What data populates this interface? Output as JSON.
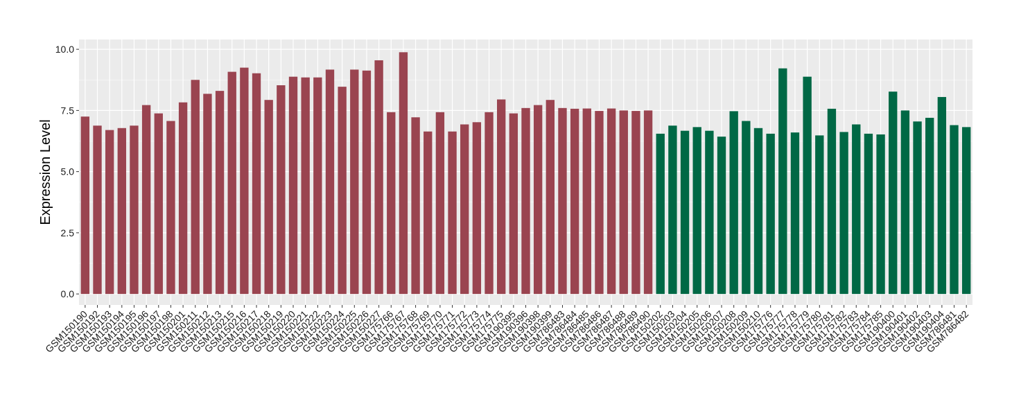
{
  "chart_data": {
    "type": "bar",
    "title": "",
    "xlabel": "",
    "ylabel": "Expression Level",
    "ylim": [
      -0.45,
      10.4
    ],
    "yticks": [
      0.0,
      2.5,
      5.0,
      7.5,
      10.0
    ],
    "ytick_labels": [
      "0.0",
      "2.5",
      "5.0",
      "7.5",
      "10.0"
    ],
    "grid": true,
    "legend": "none",
    "colors": {
      "group_a": "#9a4450",
      "group_b": "#006845",
      "panel_bg": "#ebebeb",
      "grid": "#ffffff"
    },
    "categories": [
      "GSM150190",
      "GSM150192",
      "GSM150193",
      "GSM150194",
      "GSM150195",
      "GSM150196",
      "GSM150197",
      "GSM150198",
      "GSM150201",
      "GSM150211",
      "GSM150212",
      "GSM150213",
      "GSM150215",
      "GSM150216",
      "GSM150217",
      "GSM150218",
      "GSM150219",
      "GSM150220",
      "GSM150221",
      "GSM150222",
      "GSM150223",
      "GSM150224",
      "GSM150225",
      "GSM150226",
      "GSM150227",
      "GSM175766",
      "GSM175767",
      "GSM175768",
      "GSM175769",
      "GSM175770",
      "GSM175771",
      "GSM175772",
      "GSM175773",
      "GSM175774",
      "GSM175775",
      "GSM190395",
      "GSM190396",
      "GSM190398",
      "GSM190399",
      "GSM786483",
      "GSM786484",
      "GSM786485",
      "GSM786486",
      "GSM786487",
      "GSM786488",
      "GSM786489",
      "GSM786490",
      "GSM150202",
      "GSM150203",
      "GSM150204",
      "GSM150205",
      "GSM150206",
      "GSM150207",
      "GSM150208",
      "GSM150209",
      "GSM150210",
      "GSM175776",
      "GSM175777",
      "GSM175778",
      "GSM175779",
      "GSM175780",
      "GSM175781",
      "GSM175782",
      "GSM175783",
      "GSM175784",
      "GSM175785",
      "GSM190400",
      "GSM190401",
      "GSM190402",
      "GSM190403",
      "GSM190404",
      "GSM786481",
      "GSM786482"
    ],
    "values": [
      7.25,
      6.88,
      6.7,
      6.78,
      6.88,
      7.72,
      7.38,
      7.07,
      7.83,
      8.75,
      8.18,
      8.3,
      9.08,
      9.25,
      9.02,
      7.93,
      8.53,
      8.88,
      8.85,
      8.85,
      9.17,
      8.47,
      9.17,
      9.13,
      9.55,
      7.43,
      9.88,
      7.22,
      6.64,
      7.43,
      6.64,
      6.93,
      7.02,
      7.43,
      7.95,
      7.38,
      7.6,
      7.72,
      7.93,
      7.6,
      7.57,
      7.58,
      7.48,
      7.58,
      7.5,
      7.48,
      7.5,
      6.55,
      6.88,
      6.67,
      6.82,
      6.67,
      6.43,
      7.47,
      7.07,
      6.78,
      6.55,
      9.22,
      6.6,
      8.88,
      6.48,
      7.57,
      6.62,
      6.93,
      6.55,
      6.52,
      8.27,
      7.5,
      7.05,
      7.2,
      8.05,
      6.9,
      6.82
    ],
    "group_split": 47
  }
}
